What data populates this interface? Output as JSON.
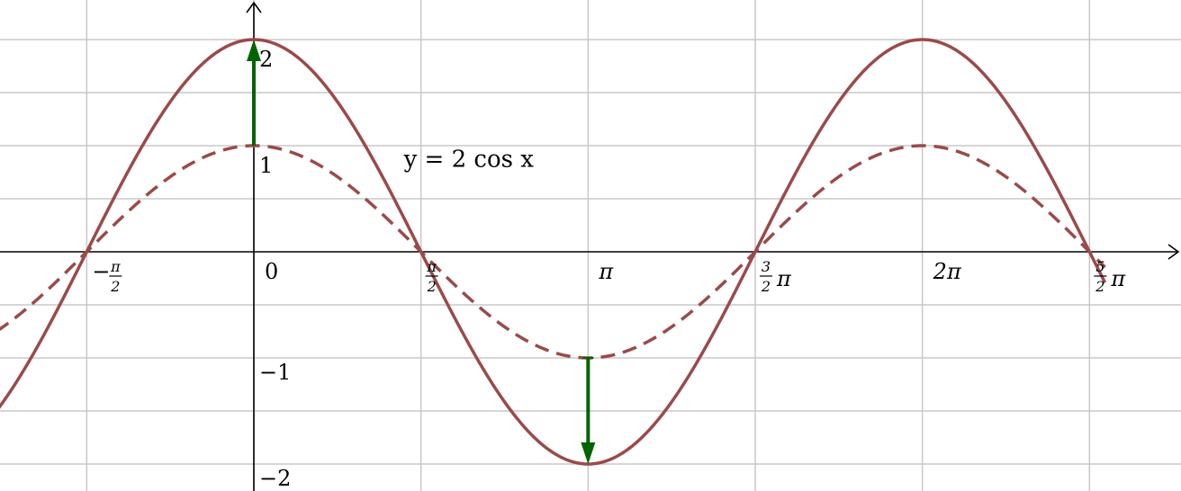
{
  "chart_data": {
    "type": "line",
    "title": "",
    "xlabel": "",
    "ylabel": "",
    "xlim": [
      -3.0,
      8.0
    ],
    "ylim": [
      -2.2,
      2.35
    ],
    "grid": true,
    "x_gridlines": [
      -1.5708,
      0,
      1.5708,
      3.1416,
      4.7124,
      6.2832,
      7.854
    ],
    "y_gridlines": [
      -2,
      -1.5,
      -1,
      -0.5,
      0,
      0.5,
      1,
      1.5,
      2
    ],
    "series": [
      {
        "name": "",
        "function": "2*cos(x)",
        "amplitude": 2,
        "style": "solid",
        "color": "#9a4a4a"
      },
      {
        "name": "",
        "function": "cos(x)",
        "amplitude": 1,
        "style": "dashed",
        "color": "#9a4a4a"
      }
    ],
    "arrows": [
      {
        "x": 0,
        "from_y": 1,
        "to_y": 2,
        "color": "#006400"
      },
      {
        "x": 3.1416,
        "from_y": -1,
        "to_y": -2,
        "color": "#006400"
      }
    ],
    "curve_label": {
      "text": "y = 2 cos x",
      "x": 1.9,
      "y": 0.8
    },
    "y_ticks": [
      {
        "value": 2,
        "label": "2"
      },
      {
        "value": 1,
        "label": "1"
      },
      {
        "value": -1,
        "label": "−1"
      },
      {
        "value": -2,
        "label": "−2"
      }
    ],
    "x_ticks": [
      {
        "value": -1.5708,
        "prefix": "−",
        "num": "π",
        "den": "2",
        "suffix": ""
      },
      {
        "value": 0,
        "label": "0"
      },
      {
        "value": 1.5708,
        "prefix": "",
        "num": "π",
        "den": "2",
        "suffix": ""
      },
      {
        "value": 3.1416,
        "label": "π"
      },
      {
        "value": 4.7124,
        "prefix": "",
        "num": "3",
        "den": "2",
        "suffix": "π"
      },
      {
        "value": 6.2832,
        "label": "2π"
      },
      {
        "value": 7.854,
        "prefix": "",
        "num": "5",
        "den": "2",
        "suffix": "π"
      }
    ]
  }
}
